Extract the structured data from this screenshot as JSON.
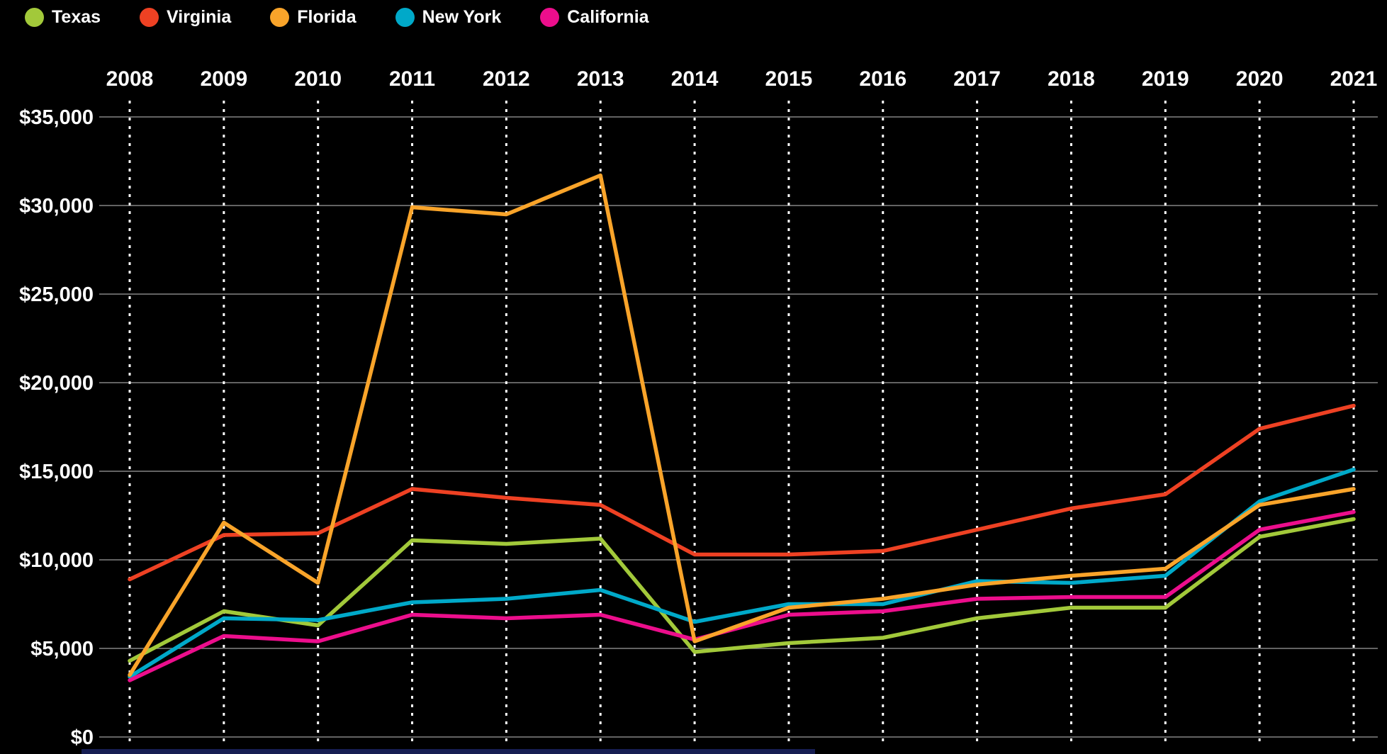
{
  "colors": {
    "background": "#000000",
    "horizontal_gridline": "#848484",
    "vertical_gridline": "#ffffff",
    "axis_text": "#ffffff",
    "bottom_bar": "#161d52"
  },
  "chart_data": {
    "type": "line",
    "title": "",
    "legend_position": "top-left",
    "grid": {
      "horizontal": "solid",
      "vertical": "dashed"
    },
    "x_axis": {
      "position": "top",
      "labels": [
        "2008",
        "2009",
        "2010",
        "2011",
        "2012",
        "2013",
        "2014",
        "2015",
        "2016",
        "2017",
        "2018",
        "2019",
        "2020",
        "2021"
      ]
    },
    "y_axis": {
      "position": "left",
      "range": [
        0,
        35000
      ],
      "ticks": [
        {
          "value": 35000,
          "label": "$35,000"
        },
        {
          "value": 30000,
          "label": "$30,000"
        },
        {
          "value": 25000,
          "label": "$25,000"
        },
        {
          "value": 20000,
          "label": "$20,000"
        },
        {
          "value": 15000,
          "label": "$15,000"
        },
        {
          "value": 10000,
          "label": "$10,000"
        },
        {
          "value": 5000,
          "label": "$5,000"
        },
        {
          "value": 0,
          "label": "$0"
        }
      ]
    },
    "series": [
      {
        "name": "Texas",
        "color": "#a2c93a",
        "values": [
          4300,
          7100,
          6300,
          11100,
          10900,
          11200,
          4800,
          5300,
          5600,
          6700,
          7300,
          7300,
          11300,
          12300
        ]
      },
      {
        "name": "Virginia",
        "color": "#ee4123",
        "values": [
          8900,
          11400,
          11500,
          14000,
          13500,
          13100,
          10300,
          10300,
          10500,
          11700,
          12900,
          13700,
          17400,
          18700
        ]
      },
      {
        "name": "Florida",
        "color": "#f9a42a",
        "values": [
          3500,
          12100,
          8700,
          29900,
          29500,
          31700,
          5400,
          7300,
          7800,
          8600,
          9100,
          9500,
          13100,
          14000
        ]
      },
      {
        "name": "New York",
        "color": "#00a9c9",
        "values": [
          3400,
          6700,
          6600,
          7600,
          7800,
          8300,
          6500,
          7500,
          7500,
          8800,
          8700,
          9100,
          13300,
          15100
        ]
      },
      {
        "name": "California",
        "color": "#ec0e8c",
        "values": [
          3200,
          5700,
          5400,
          6900,
          6700,
          6900,
          5500,
          6900,
          7100,
          7800,
          7900,
          7900,
          11700,
          12700
        ]
      }
    ]
  }
}
